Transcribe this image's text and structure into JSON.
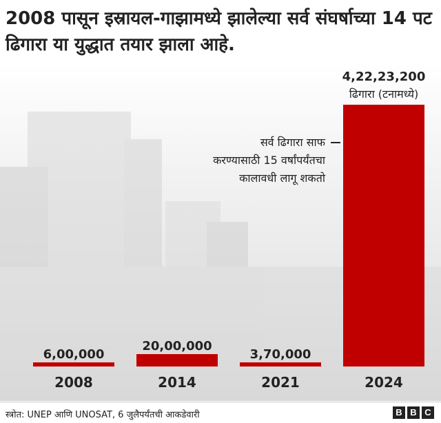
{
  "title": "2008 पासून इस्रायल-गाझामध्ये झालेल्या सर्व संघर्षाच्या 14 पट ढिगारा या युद्धात तयार झाला आहे.",
  "source": "स्त्रोत: UNEP आणि UNOSAT, 6 जुलैपर्यंतची आकडेवारी",
  "logo": [
    "B",
    "B",
    "C"
  ],
  "colors": {
    "bar": "#c00000",
    "text": "#222222"
  },
  "chart_data": {
    "type": "bar",
    "categories": [
      "2008",
      "2014",
      "2021",
      "2024"
    ],
    "values": [
      600000,
      2000000,
      370000,
      42223200
    ],
    "value_labels": [
      "6,00,000",
      "20,00,000",
      "3,70,000",
      "4,22,23,200"
    ],
    "unit_label": "ढिगारा (टनामध्ये)",
    "annotation": [
      "सर्व ढिगारा साफ",
      "करण्यासाठी 15 वर्षांपर्यंतचा",
      "कालावधी लागू शकतो"
    ],
    "title": "",
    "xlabel": "",
    "ylabel": "",
    "ylim": [
      0,
      42223200
    ],
    "grid": false
  }
}
